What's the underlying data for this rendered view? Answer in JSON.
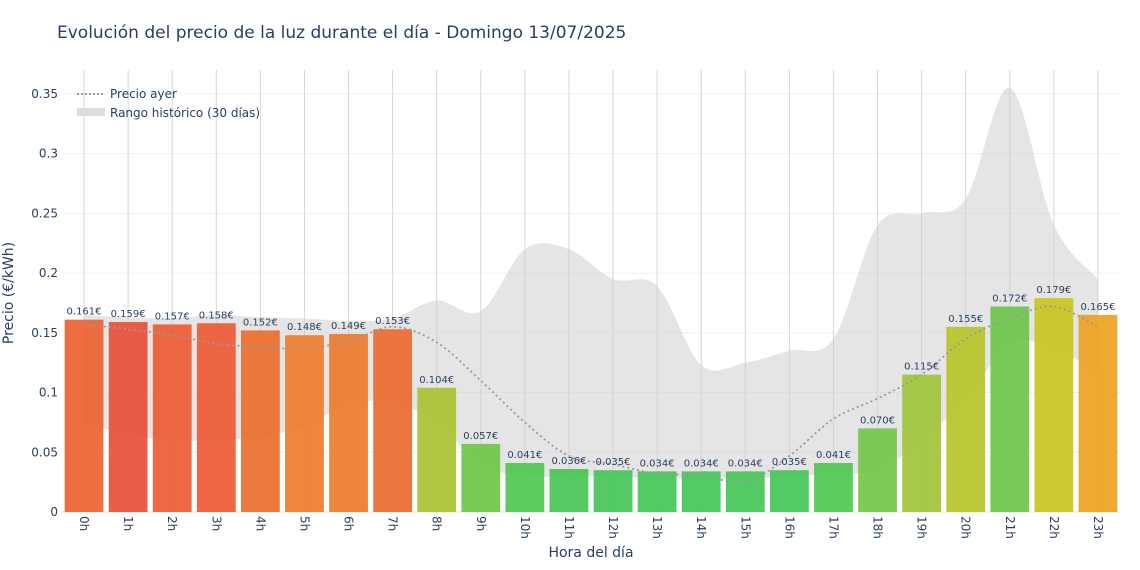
{
  "chart_data": {
    "type": "bar",
    "title": "Evolución del precio de la luz durante el día - Domingo 13/07/2025",
    "xlabel": "Hora del día",
    "ylabel": "Precio (€/kWh)",
    "ylim": [
      0,
      0.37
    ],
    "y_ticks": [
      0,
      0.05,
      0.1,
      0.15,
      0.2,
      0.25,
      0.3,
      0.35
    ],
    "y_tick_labels": [
      "0",
      "0.05",
      "0.1",
      "0.15",
      "0.2",
      "0.25",
      "0.3",
      "0.35"
    ],
    "categories": [
      "0h",
      "1h",
      "2h",
      "3h",
      "4h",
      "5h",
      "6h",
      "7h",
      "8h",
      "9h",
      "10h",
      "11h",
      "12h",
      "13h",
      "14h",
      "15h",
      "16h",
      "17h",
      "18h",
      "19h",
      "20h",
      "21h",
      "22h",
      "23h"
    ],
    "values": [
      0.161,
      0.159,
      0.157,
      0.158,
      0.152,
      0.148,
      0.149,
      0.153,
      0.104,
      0.057,
      0.041,
      0.036,
      0.035,
      0.034,
      0.034,
      0.034,
      0.035,
      0.041,
      0.07,
      0.115,
      0.155,
      0.172,
      0.179,
      0.165
    ],
    "value_labels": [
      "0.161€",
      "0.159€",
      "0.157€",
      "0.158€",
      "0.152€",
      "0.148€",
      "0.149€",
      "0.153€",
      "0.104€",
      "0.057€",
      "0.041€",
      "0.036€",
      "0.035€",
      "0.034€",
      "0.034€",
      "0.034€",
      "0.035€",
      "0.041€",
      "0.070€",
      "0.115€",
      "0.155€",
      "0.172€",
      "0.179€",
      "0.165€"
    ],
    "bar_colors": [
      "#ec6230",
      "#e8503a",
      "#eb5c34",
      "#eb5a35",
      "#ec6e2e",
      "#ed7d2c",
      "#ee7b2c",
      "#ec6a30",
      "#a8c232",
      "#6fc746",
      "#4ec850",
      "#47c656",
      "#45c657",
      "#45c657",
      "#45c657",
      "#45c657",
      "#45c657",
      "#4ec850",
      "#74c74a",
      "#a0c33a",
      "#b5c42a",
      "#6dc74a",
      "#c8c420",
      "#eda221"
    ],
    "series": [
      {
        "name": "Precio ayer",
        "style": "dotted-line",
        "color": "#999999",
        "values": [
          0.157,
          0.153,
          0.148,
          0.141,
          0.138,
          0.137,
          0.143,
          0.155,
          0.142,
          0.11,
          0.075,
          0.047,
          0.04,
          0.032,
          0.031,
          0.025,
          0.047,
          0.078,
          0.095,
          0.115,
          0.145,
          0.162,
          0.172,
          0.155
        ]
      },
      {
        "name": "Rango histórico (30 días)",
        "style": "band",
        "color": "#d3d3d3",
        "upper": [
          0.165,
          0.163,
          0.162,
          0.165,
          0.163,
          0.162,
          0.16,
          0.162,
          0.177,
          0.168,
          0.22,
          0.22,
          0.195,
          0.189,
          0.123,
          0.125,
          0.135,
          0.145,
          0.24,
          0.25,
          0.262,
          0.355,
          0.24,
          0.195
        ],
        "lower": [
          0.075,
          0.065,
          0.06,
          0.06,
          0.063,
          0.072,
          0.09,
          0.092,
          0.075,
          0.04,
          0.03,
          0.03,
          0.03,
          0.028,
          0.028,
          0.028,
          0.03,
          0.032,
          0.035,
          0.06,
          0.095,
          0.14,
          0.138,
          0.115
        ]
      }
    ],
    "legend_position": "top-left",
    "grid": true
  }
}
